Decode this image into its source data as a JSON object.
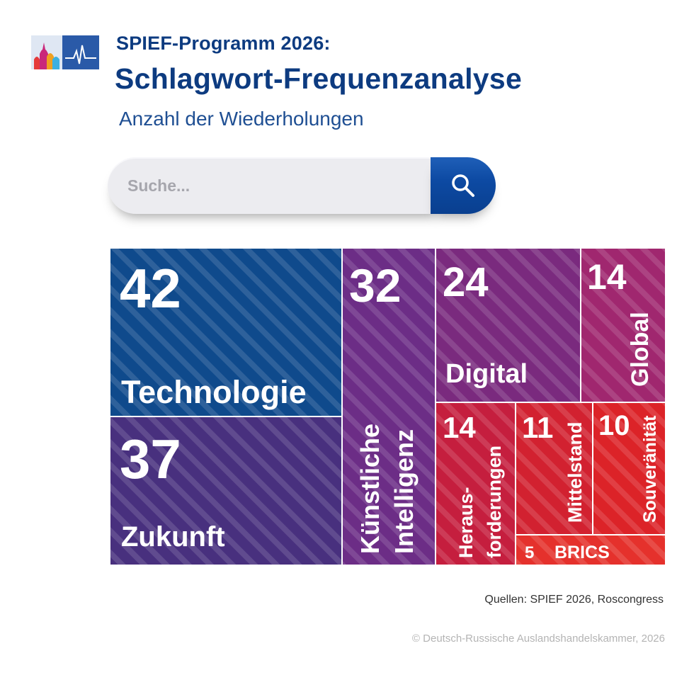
{
  "header": {
    "title_line1": "SPIEF-Programm 2026:",
    "title_line2": "Schlagwort-Frequenzanalyse",
    "subtitle": "Anzahl der Wiederholungen"
  },
  "search": {
    "placeholder": "Suche...",
    "icon": "magnifier-icon"
  },
  "chart_data": {
    "type": "treemap",
    "unit": "Anzahl der Wiederholungen",
    "items": [
      {
        "label": "Technologie",
        "value": 42,
        "color": "#0f4a8c"
      },
      {
        "label": "Zukunft",
        "value": 37,
        "color": "#48307e"
      },
      {
        "label": "Künstliche Intelligenz",
        "value": 32,
        "color": "#6c2d86"
      },
      {
        "label": "Digital",
        "value": 24,
        "color": "#7a2a7e"
      },
      {
        "label": "Global",
        "value": 14,
        "color": "#a0276f"
      },
      {
        "label": "Heraus-forderungen",
        "value": 14,
        "color": "#c51e3e"
      },
      {
        "label": "Mittelstand",
        "value": 11,
        "color": "#d22130"
      },
      {
        "label": "Souveränität",
        "value": 10,
        "color": "#dc2328"
      },
      {
        "label": "BRICS",
        "value": 5,
        "color": "#e5312c"
      }
    ]
  },
  "footer": {
    "source": "Quellen: SPIEF 2026, Roscongress",
    "copyright": "© Deutsch-Russische Auslandshandelskammer, 2026"
  },
  "colors": {
    "title": "#0d3b80",
    "search_button": "#0d4aa3"
  }
}
